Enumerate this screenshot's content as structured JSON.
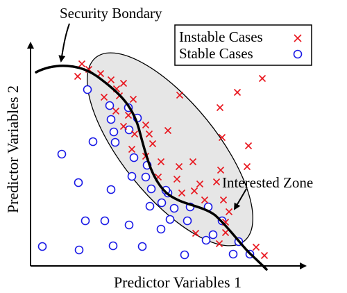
{
  "labels": {
    "boundary": "Security Bondary",
    "zone": "Interested Zone",
    "x_axis": "Predictor Variables 1",
    "y_axis": "Predictor Variables 2"
  },
  "legend": {
    "instable": "Instable Cases",
    "stable": "Stable Cases"
  },
  "colors": {
    "instable": "#e8141c",
    "stable": "#1a1ae6",
    "zone_fill": "#e6e6e6",
    "boundary": "#000000"
  },
  "markers": {
    "instable_symbol": "x-cross",
    "stable_symbol": "open-circle"
  }
}
